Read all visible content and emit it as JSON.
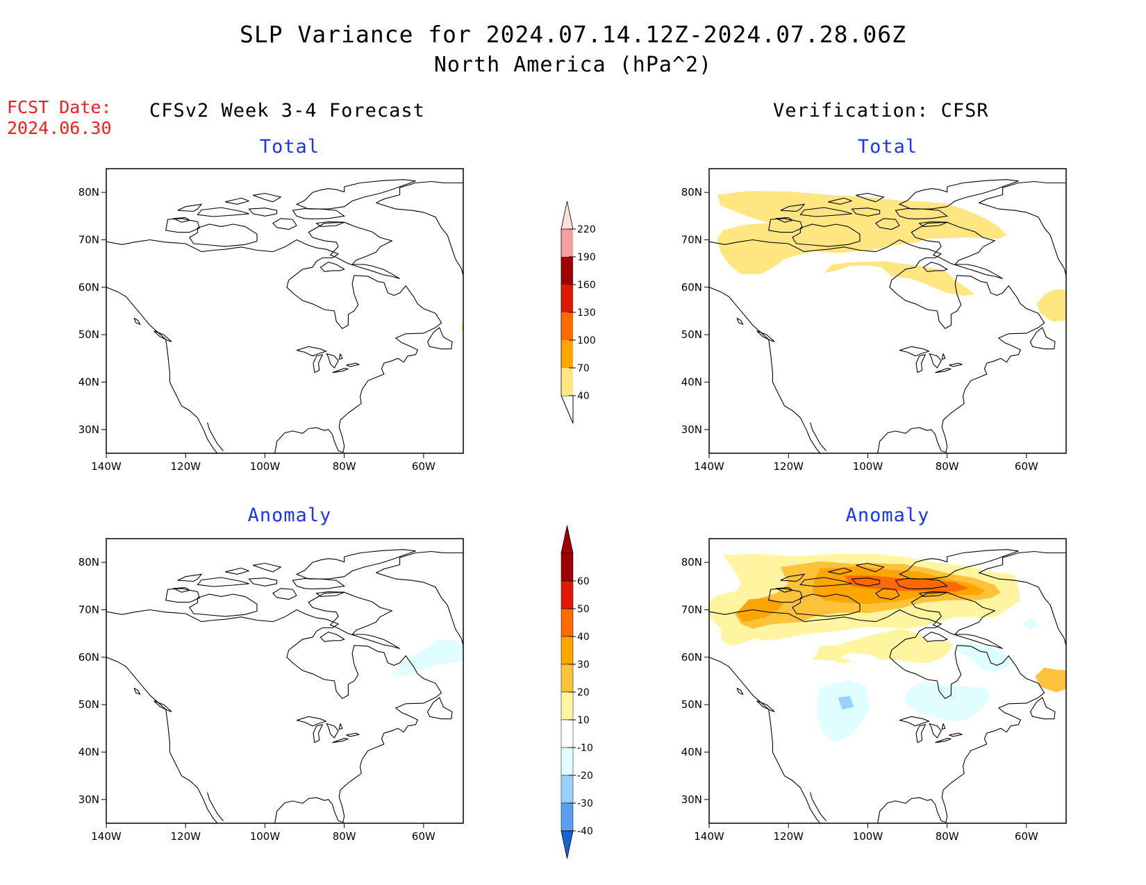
{
  "title": "SLP Variance for 2024.07.14.12Z-2024.07.28.06Z",
  "subtitle": "North America (hPa^2)",
  "fcst_label": "FCST Date:",
  "fcst_date": "2024.06.30",
  "left_heading": "CFSv2 Week 3-4 Forecast",
  "right_heading": "Verification: CFSR",
  "panel_titles": {
    "total": "Total",
    "anomaly": "Anomaly"
  },
  "lat_labels": [
    "80N",
    "70N",
    "60N",
    "50N",
    "40N",
    "30N"
  ],
  "lon_labels": [
    "140W",
    "120W",
    "100W",
    "80W",
    "60W"
  ],
  "colorbar_total": {
    "levels": [
      {
        "value": "40",
        "color": "#ffe680"
      },
      {
        "value": "70",
        "color": "#ffa500"
      },
      {
        "value": "100",
        "color": "#ff6a00"
      },
      {
        "value": "130",
        "color": "#e01800"
      },
      {
        "value": "160",
        "color": "#a00000"
      },
      {
        "value": "190",
        "color": "#f4a0a0"
      },
      {
        "value": "220",
        "color": "#fde0dc"
      }
    ]
  },
  "colorbar_anomaly": {
    "levels": [
      {
        "value": "60",
        "color": "#a00000"
      },
      {
        "value": "50",
        "color": "#e01800"
      },
      {
        "value": "40",
        "color": "#ff6a00"
      },
      {
        "value": "30",
        "color": "#ffa500"
      },
      {
        "value": "20",
        "color": "#ffc23a"
      },
      {
        "value": "10",
        "color": "#fff5a0"
      },
      {
        "value": "-10",
        "color": "#ffffff"
      },
      {
        "value": "-20",
        "color": "#e0feff"
      },
      {
        "value": "-30",
        "color": "#96d2fa"
      },
      {
        "value": "-40",
        "color": "#5aa0f0"
      }
    ],
    "top_color": "#a00000",
    "bottom_color": "#1464d2"
  }
}
